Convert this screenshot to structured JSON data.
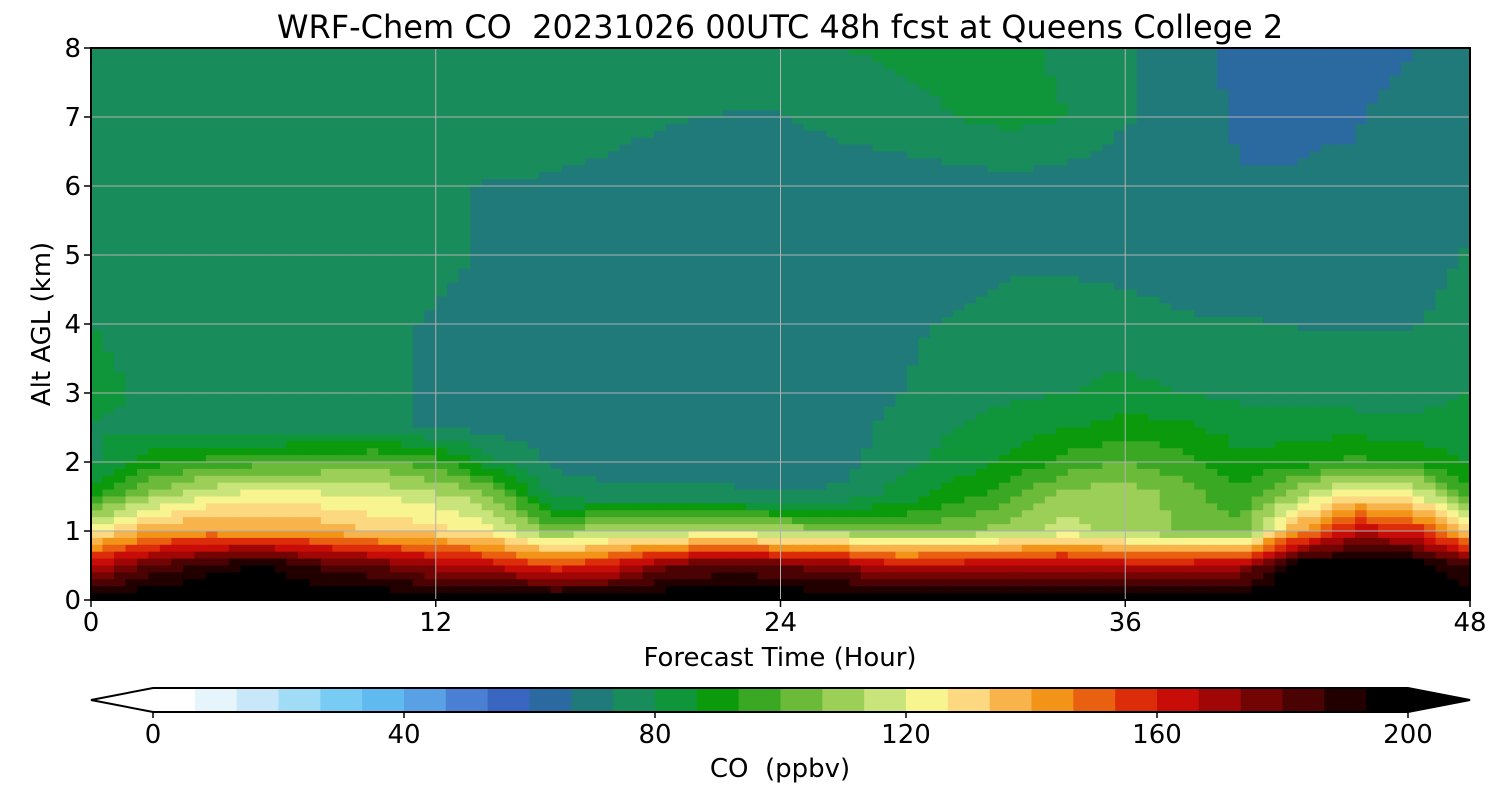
{
  "chart_data": {
    "type": "heatmap",
    "title": "WRF-Chem CO  20231026 00UTC 48h fcst at Queens College 2",
    "xlabel": "Forecast Time (Hour)",
    "ylabel": "Alt AGL (km)",
    "xlim": [
      0,
      48
    ],
    "ylim": [
      0,
      8
    ],
    "xticks": [
      0,
      12,
      24,
      36,
      48
    ],
    "yticks": [
      0,
      1,
      2,
      3,
      4,
      5,
      6,
      7,
      8
    ],
    "grid": true,
    "colorbar": {
      "label": "CO  (ppbv)",
      "range": [
        0,
        200
      ],
      "ticks": [
        0,
        40,
        80,
        120,
        160,
        200
      ],
      "extend": "both",
      "colors": [
        "#ffffff",
        "#e6f4fc",
        "#c8e8fa",
        "#a0dcf6",
        "#78ccf4",
        "#60baf0",
        "#5aa0e4",
        "#4a7fd4",
        "#3866c0",
        "#2a6aa0",
        "#207a7a",
        "#188c5a",
        "#10963a",
        "#0b9a0b",
        "#3aa822",
        "#6cba3a",
        "#9ccf58",
        "#c8e47a",
        "#f8f490",
        "#fcd880",
        "#f8b44a",
        "#f29418",
        "#e86010",
        "#dc2c0a",
        "#c80c08",
        "#a00606",
        "#720404",
        "#4a0202",
        "#220000",
        "#000000"
      ]
    },
    "x": [
      0,
      2,
      4,
      6,
      8,
      10,
      12,
      14,
      16,
      18,
      20,
      22,
      24,
      26,
      28,
      30,
      32,
      34,
      36,
      38,
      40,
      42,
      44,
      46,
      48
    ],
    "y": [
      0,
      0.5,
      1,
      1.5,
      2,
      2.5,
      3,
      4,
      5,
      6,
      7,
      8
    ],
    "z": [
      [
        200,
        200,
        200,
        200,
        200,
        200,
        200,
        200,
        200,
        200,
        200,
        200,
        200,
        200,
        200,
        200,
        200,
        200,
        200,
        200,
        200,
        200,
        200,
        200,
        200
      ],
      [
        165,
        180,
        190,
        195,
        185,
        180,
        170,
        165,
        155,
        160,
        178,
        182,
        180,
        175,
        165,
        165,
        168,
        170,
        165,
        165,
        170,
        200,
        200,
        200,
        185
      ],
      [
        125,
        138,
        142,
        140,
        138,
        132,
        130,
        122,
        106,
        112,
        112,
        115,
        112,
        108,
        102,
        106,
        110,
        116,
        110,
        106,
        102,
        140,
        165,
        160,
        130
      ],
      [
        92,
        110,
        120,
        125,
        122,
        120,
        116,
        108,
        78,
        76,
        76,
        76,
        74,
        75,
        82,
        90,
        98,
        110,
        112,
        104,
        95,
        112,
        130,
        125,
        96
      ],
      [
        78,
        90,
        95,
        98,
        100,
        102,
        95,
        82,
        72,
        70,
        68,
        68,
        68,
        70,
        78,
        82,
        88,
        96,
        100,
        96,
        88,
        90,
        95,
        92,
        85
      ],
      [
        80,
        78,
        76,
        75,
        74,
        74,
        73,
        71,
        70,
        69,
        68,
        68,
        68,
        70,
        75,
        80,
        84,
        86,
        90,
        88,
        84,
        84,
        84,
        82,
        86
      ],
      [
        82,
        79,
        77,
        76,
        75,
        74,
        73,
        71,
        70,
        69,
        68,
        68,
        68,
        70,
        73,
        76,
        78,
        80,
        82,
        80,
        78,
        78,
        76,
        76,
        80
      ],
      [
        80,
        78,
        77,
        76,
        75,
        74,
        73,
        72,
        72,
        70,
        70,
        69,
        69,
        70,
        72,
        74,
        76,
        76,
        76,
        74,
        74,
        73,
        73,
        73,
        76
      ],
      [
        79,
        78,
        78,
        76,
        76,
        75,
        74,
        73,
        72,
        70,
        69,
        68,
        67,
        67,
        68,
        70,
        72,
        72,
        71,
        70,
        68,
        68,
        69,
        70,
        74
      ],
      [
        79,
        79,
        80,
        78,
        77,
        75,
        74,
        73,
        73,
        72,
        70,
        69,
        68,
        68,
        69,
        70,
        71,
        70,
        69,
        68,
        67,
        67,
        68,
        70,
        72
      ],
      [
        78,
        78,
        78,
        76,
        76,
        76,
        76,
        76,
        75,
        75,
        74,
        73,
        73,
        76,
        78,
        80,
        82,
        80,
        74,
        70,
        66,
        66,
        66,
        70,
        73
      ],
      [
        77,
        77,
        77,
        77,
        77,
        76,
        76,
        76,
        76,
        76,
        77,
        78,
        78,
        80,
        81,
        82,
        81,
        79,
        74,
        70,
        64,
        64,
        64,
        66,
        71
      ]
    ]
  }
}
